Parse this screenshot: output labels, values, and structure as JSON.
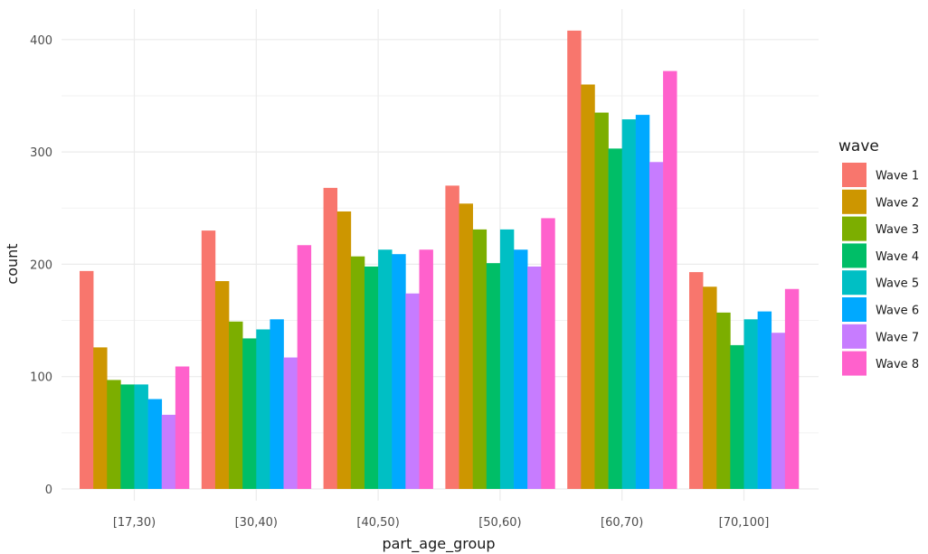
{
  "chart_data": {
    "type": "bar",
    "xlabel": "part_age_group",
    "ylabel": "count",
    "categories": [
      "[17,30)",
      "[30,40)",
      "[40,50)",
      "[50,60)",
      "[60,70)",
      "[70,100]"
    ],
    "ylim": [
      0,
      425
    ],
    "y_ticks": [
      0,
      100,
      200,
      300,
      400
    ],
    "grid": true,
    "legend": {
      "title": "wave",
      "position": "right"
    },
    "series": [
      {
        "name": "Wave 1",
        "color": "#F8766D",
        "values": [
          194,
          230,
          268,
          270,
          408,
          193
        ]
      },
      {
        "name": "Wave 2",
        "color": "#CD9600",
        "values": [
          126,
          185,
          247,
          254,
          360,
          180
        ]
      },
      {
        "name": "Wave 3",
        "color": "#7CAE00",
        "values": [
          97,
          149,
          207,
          231,
          335,
          157
        ]
      },
      {
        "name": "Wave 4",
        "color": "#00BE67",
        "values": [
          93,
          134,
          198,
          201,
          303,
          128
        ]
      },
      {
        "name": "Wave 5",
        "color": "#00BFC4",
        "values": [
          93,
          142,
          213,
          231,
          329,
          151
        ]
      },
      {
        "name": "Wave 6",
        "color": "#00A9FF",
        "values": [
          80,
          151,
          209,
          213,
          333,
          158
        ]
      },
      {
        "name": "Wave 7",
        "color": "#C77CFF",
        "values": [
          66,
          117,
          174,
          198,
          291,
          139
        ]
      },
      {
        "name": "Wave 8",
        "color": "#FF61CC",
        "values": [
          109,
          217,
          213,
          241,
          372,
          178
        ]
      }
    ]
  }
}
